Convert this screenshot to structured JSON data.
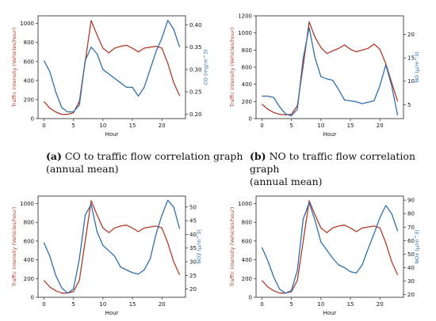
{
  "colors": {
    "traffic": "#b23a2a",
    "pollutant": "#2f6fae"
  },
  "captions": [
    {
      "letter": "(a)",
      "text": "CO to traffic flow correlation graph",
      "line2": "(annual mean)"
    },
    {
      "letter": "(b)",
      "text": "NO to traffic flow correlation graph",
      "line2": "(annual mean)"
    }
  ],
  "chart_data": [
    {
      "type": "line",
      "xlabel": "Hour",
      "ylabel_left": "Traffic intensity (Vehicles/hour)",
      "ylabel_right": "CO (mg/m^3)",
      "x": [
        0,
        1,
        2,
        3,
        4,
        5,
        6,
        7,
        8,
        9,
        10,
        11,
        12,
        13,
        14,
        15,
        16,
        17,
        18,
        19,
        20,
        21,
        22,
        23
      ],
      "xticks": [
        0,
        5,
        10,
        15,
        20
      ],
      "xlim": [
        -1,
        24
      ],
      "left_ylim": [
        0,
        1080
      ],
      "left_yticks": [
        0,
        200,
        400,
        600,
        800,
        1000
      ],
      "right_ylim": [
        0.19,
        0.42
      ],
      "right_yticks": [
        0.2,
        0.25,
        0.3,
        0.35,
        0.4
      ],
      "right_ticklabels": [
        "0.20",
        "0.25",
        "0.30",
        "0.35",
        "0.40"
      ],
      "series": [
        {
          "axis": "left",
          "values": [
            180,
            110,
            70,
            45,
            45,
            60,
            180,
            600,
            1030,
            880,
            740,
            690,
            740,
            760,
            770,
            740,
            700,
            740,
            750,
            760,
            740,
            580,
            380,
            240
          ]
        },
        {
          "axis": "right",
          "values": [
            0.32,
            0.295,
            0.25,
            0.215,
            0.205,
            0.205,
            0.22,
            0.32,
            0.35,
            0.335,
            0.3,
            0.29,
            0.28,
            0.27,
            0.26,
            0.26,
            0.24,
            0.26,
            0.3,
            0.34,
            0.37,
            0.41,
            0.39,
            0.35
          ]
        }
      ]
    },
    {
      "type": "line",
      "xlabel": "Hour",
      "ylabel_left": "Traffic intensity (Vehicles/hour)",
      "ylabel_right": "NO (μ/m^3)",
      "x": [
        0,
        1,
        2,
        3,
        4,
        5,
        6,
        7,
        8,
        9,
        10,
        11,
        12,
        13,
        14,
        15,
        16,
        17,
        18,
        19,
        20,
        21,
        22,
        23
      ],
      "xticks": [
        0,
        5,
        10,
        15,
        20
      ],
      "xlim": [
        -1,
        24
      ],
      "left_ylim": [
        0,
        1200
      ],
      "left_yticks": [
        0,
        200,
        400,
        600,
        800,
        1000,
        1200
      ],
      "right_ylim": [
        2,
        24
      ],
      "right_yticks": [
        5,
        10,
        15,
        20
      ],
      "right_ticklabels": [
        "5",
        "10",
        "15",
        "20"
      ],
      "series": [
        {
          "axis": "left",
          "values": [
            170,
            110,
            70,
            50,
            45,
            50,
            150,
            620,
            1130,
            950,
            830,
            760,
            790,
            820,
            860,
            810,
            780,
            800,
            820,
            870,
            810,
            640,
            420,
            200
          ]
        },
        {
          "axis": "right",
          "values": [
            6.8,
            6.8,
            6.5,
            4.5,
            3.0,
            2.6,
            4.0,
            15,
            21.5,
            15,
            11,
            10.5,
            10.2,
            8.2,
            6,
            5.8,
            5.6,
            5.2,
            5.5,
            5.8,
            9,
            13.5,
            9,
            2.7
          ]
        }
      ]
    },
    {
      "type": "line",
      "xlabel": "Hour",
      "ylabel_left": "Traffic intensity (Vehicles/hour)",
      "ylabel_right": "NO2 (μ/m^3)",
      "x": [
        0,
        1,
        2,
        3,
        4,
        5,
        6,
        7,
        8,
        9,
        10,
        11,
        12,
        13,
        14,
        15,
        16,
        17,
        18,
        19,
        20,
        21,
        22,
        23
      ],
      "xticks": [
        0,
        5,
        10,
        15,
        20
      ],
      "xlim": [
        -1,
        24
      ],
      "left_ylim": [
        0,
        1080
      ],
      "left_yticks": [
        0,
        200,
        400,
        600,
        800,
        1000
      ],
      "right_ylim": [
        17,
        54
      ],
      "right_yticks": [
        20,
        25,
        30,
        35,
        40,
        45,
        50
      ],
      "right_ticklabels": [
        "20",
        "25",
        "30",
        "35",
        "40",
        "45",
        "50"
      ],
      "series": [
        {
          "axis": "left",
          "values": [
            180,
            110,
            70,
            45,
            45,
            60,
            180,
            600,
            1030,
            880,
            740,
            690,
            740,
            760,
            770,
            740,
            700,
            740,
            750,
            760,
            740,
            580,
            380,
            240
          ]
        },
        {
          "axis": "right",
          "values": [
            37,
            32,
            25,
            20.5,
            18.5,
            20,
            31,
            47,
            51,
            41,
            36,
            34,
            32,
            28,
            27,
            26,
            25.5,
            27,
            31,
            40,
            47,
            52.5,
            50,
            42
          ]
        }
      ]
    },
    {
      "type": "line",
      "xlabel": "Hour",
      "ylabel_left": "Traffic intensity (Vehicles/hour)",
      "ylabel_right": "NOx (μ/m^3)",
      "x": [
        0,
        1,
        2,
        3,
        4,
        5,
        6,
        7,
        8,
        9,
        10,
        11,
        12,
        13,
        14,
        15,
        16,
        17,
        18,
        19,
        20,
        21,
        22,
        23
      ],
      "xticks": [
        0,
        5,
        10,
        15,
        20
      ],
      "xlim": [
        -1,
        24
      ],
      "left_ylim": [
        0,
        1080
      ],
      "left_yticks": [
        0,
        200,
        400,
        600,
        800,
        1000
      ],
      "right_ylim": [
        18,
        93
      ],
      "right_yticks": [
        20,
        30,
        40,
        50,
        60,
        70,
        80,
        90
      ],
      "right_ticklabels": [
        "20",
        "30",
        "40",
        "50",
        "60",
        "70",
        "80",
        "90"
      ],
      "series": [
        {
          "axis": "left",
          "values": [
            180,
            110,
            70,
            45,
            45,
            60,
            180,
            600,
            1030,
            880,
            740,
            690,
            740,
            760,
            770,
            740,
            700,
            740,
            750,
            760,
            740,
            580,
            380,
            240
          ]
        },
        {
          "axis": "right",
          "values": [
            55,
            45,
            33,
            24,
            21,
            23,
            38,
            76,
            88,
            75,
            59,
            53,
            47,
            42,
            40,
            37,
            36,
            42,
            54,
            65,
            77,
            86,
            80,
            67
          ]
        }
      ]
    }
  ]
}
